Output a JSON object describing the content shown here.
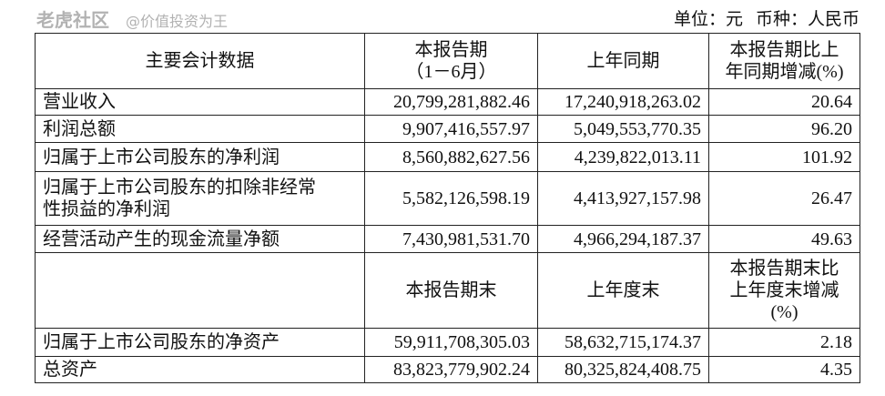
{
  "unit_line": {
    "unit": "单位：元",
    "currency": "币种：人民币"
  },
  "header1": {
    "col0": "主要会计数据",
    "col1_line1": "本报告期",
    "col1_line2": "（1－6月）",
    "col2": "上年同期",
    "col3_line1": "本报告期比上",
    "col3_line2": "年同期增减(%)"
  },
  "rows1": [
    {
      "label": "营业收入",
      "current": "20,799,281,882.46",
      "prior": "17,240,918,263.02",
      "change": "20.64"
    },
    {
      "label": "利润总额",
      "current": "9,907,416,557.97",
      "prior": "5,049,553,770.35",
      "change": "96.20"
    },
    {
      "label": "归属于上市公司股东的净利润",
      "current": "8,560,882,627.56",
      "prior": "4,239,822,013.11",
      "change": "101.92"
    },
    {
      "label_line1": "归属于上市公司股东的扣除非经常",
      "label_line2": "性损益的净利润",
      "current": "5,582,126,598.19",
      "prior": "4,413,927,157.98",
      "change": "26.47"
    },
    {
      "label": "经营活动产生的现金流量净额",
      "current": "7,430,981,531.70",
      "prior": "4,966,294,187.37",
      "change": "49.63"
    }
  ],
  "header2": {
    "col1": "本报告期末",
    "col2": "上年度末",
    "col3_line1": "本报告期末比",
    "col3_line2": "上年度末增减",
    "col3_line3": "(%)"
  },
  "rows2": [
    {
      "label": "归属于上市公司股东的净资产",
      "current": "59,911,708,305.03",
      "prior": "58,632,715,174.37",
      "change": "2.18"
    },
    {
      "label": "总资产",
      "current": "83,823,779,902.24",
      "prior": "80,325,824,408.75",
      "change": "4.35"
    }
  ],
  "watermark": {
    "brand": "老虎社区",
    "author": "@价值投资为王"
  }
}
